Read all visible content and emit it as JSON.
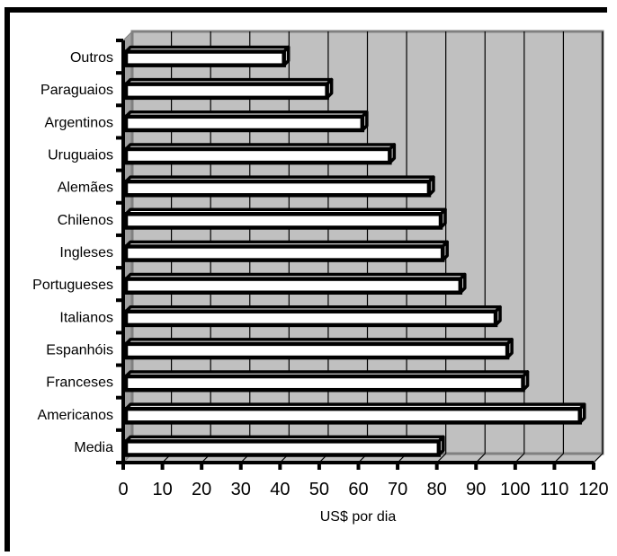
{
  "chart_data": {
    "type": "bar",
    "orientation": "horizontal",
    "categories": [
      "Outros",
      "Paraguaios",
      "Argentinos",
      "Uruguaios",
      "Alemães",
      "Chilenos",
      "Ingleses",
      "Portugueses",
      "Italianos",
      "Espanhóis",
      "Franceses",
      "Americanos",
      "Media"
    ],
    "values": [
      41,
      52,
      61,
      68,
      78,
      81,
      81.5,
      86,
      95,
      98,
      102,
      116.5,
      80.5
    ],
    "xlabel": "US$ por dia",
    "xlim": [
      0,
      120
    ],
    "xticks": [
      0,
      10,
      20,
      30,
      40,
      50,
      60,
      70,
      80,
      90,
      100,
      110,
      120
    ],
    "grid": true,
    "colors": {
      "plot_background": "#c0c0c0",
      "bar_fill": "#ffffff",
      "bar_edge": "#000000",
      "gridline": "#000000"
    }
  }
}
